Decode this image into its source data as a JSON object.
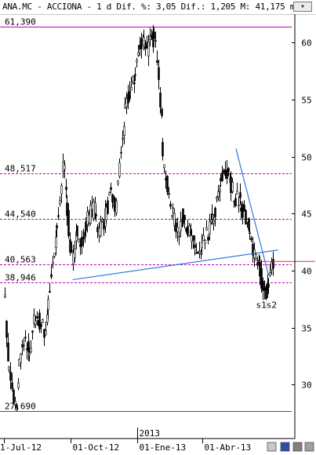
{
  "header": {
    "title": "ANA.MC - ACCIONA -  1 d Dif. %: 3,05 Dif.: 1,205 M: 41,175 m:",
    "menu_icon": "chevron-down-icon"
  },
  "chart_data": {
    "type": "candlestick",
    "title": "ANA.MC - ACCIONA",
    "period": "1 d",
    "stats": {
      "dif_pct": "3,05",
      "dif": "1,205",
      "max": "41,175"
    },
    "ylim": [
      26.5,
      62.5
    ],
    "y_ticks": [
      30,
      35,
      40,
      45,
      50,
      55,
      60
    ],
    "x_ticks": [
      {
        "label": "1-Jul-12",
        "day": 0
      },
      {
        "label": "01-Oct-12",
        "day": 92
      },
      {
        "label": "01-Ene-13",
        "day": 184
      },
      {
        "label": "01-Abr-13",
        "day": 274
      }
    ],
    "year_marker": {
      "label": "2013",
      "day": 184
    },
    "x_range": [
      0,
      398
    ],
    "horizontal_levels": [
      {
        "label": "61,390",
        "value": 61.39
      },
      {
        "label": "48,517",
        "value": 48.517
      },
      {
        "label": "44,540",
        "value": 44.54
      },
      {
        "label": "40,563",
        "value": 40.563
      },
      {
        "label": "38,946",
        "value": 38.946
      },
      {
        "label": "27,690",
        "value": 27.69
      }
    ],
    "trendlines": [
      {
        "name": "support",
        "from": [
          95,
          39.2
        ],
        "to": [
          378,
          41.8
        ]
      },
      {
        "name": "resistance",
        "from": [
          320,
          50.7
        ],
        "to": [
          365,
          39.6
        ]
      }
    ],
    "red_level": {
      "value": 40.8,
      "from": 350,
      "to": 398
    },
    "annotation": {
      "label": "s1s2",
      "day": 362,
      "value": 36.8
    },
    "key_points": [
      [
        0,
        38.5
      ],
      [
        5,
        32.0
      ],
      [
        12,
        29.0
      ],
      [
        16,
        27.9
      ],
      [
        22,
        32.5
      ],
      [
        28,
        33.5
      ],
      [
        36,
        33.0
      ],
      [
        42,
        36.0
      ],
      [
        50,
        35.5
      ],
      [
        56,
        34.5
      ],
      [
        62,
        38.0
      ],
      [
        70,
        42.0
      ],
      [
        78,
        47.0
      ],
      [
        82,
        49.5
      ],
      [
        86,
        46.5
      ],
      [
        90,
        42.5
      ],
      [
        96,
        40.5
      ],
      [
        100,
        43.5
      ],
      [
        108,
        42.5
      ],
      [
        116,
        44.8
      ],
      [
        124,
        45.5
      ],
      [
        130,
        43.5
      ],
      [
        138,
        44.5
      ],
      [
        146,
        46.5
      ],
      [
        154,
        45.5
      ],
      [
        160,
        50.0
      ],
      [
        166,
        53.5
      ],
      [
        172,
        55.5
      ],
      [
        178,
        56.5
      ],
      [
        184,
        58.8
      ],
      [
        190,
        60.5
      ],
      [
        198,
        59.5
      ],
      [
        206,
        60.5
      ],
      [
        212,
        58.5
      ],
      [
        216,
        54.0
      ],
      [
        220,
        49.5
      ],
      [
        226,
        46.5
      ],
      [
        234,
        44.5
      ],
      [
        240,
        43.5
      ],
      [
        248,
        45.0
      ],
      [
        256,
        43.0
      ],
      [
        262,
        42.0
      ],
      [
        270,
        41.2
      ],
      [
        276,
        42.5
      ],
      [
        282,
        43.5
      ],
      [
        290,
        45.0
      ],
      [
        298,
        47.5
      ],
      [
        304,
        49.0
      ],
      [
        310,
        48.0
      ],
      [
        318,
        46.5
      ],
      [
        326,
        46.0
      ],
      [
        334,
        44.5
      ],
      [
        340,
        42.5
      ],
      [
        346,
        41.5
      ],
      [
        352,
        40.3
      ],
      [
        358,
        38.0
      ],
      [
        364,
        38.3
      ],
      [
        370,
        40.4
      ],
      [
        372,
        41.0
      ]
    ]
  }
}
